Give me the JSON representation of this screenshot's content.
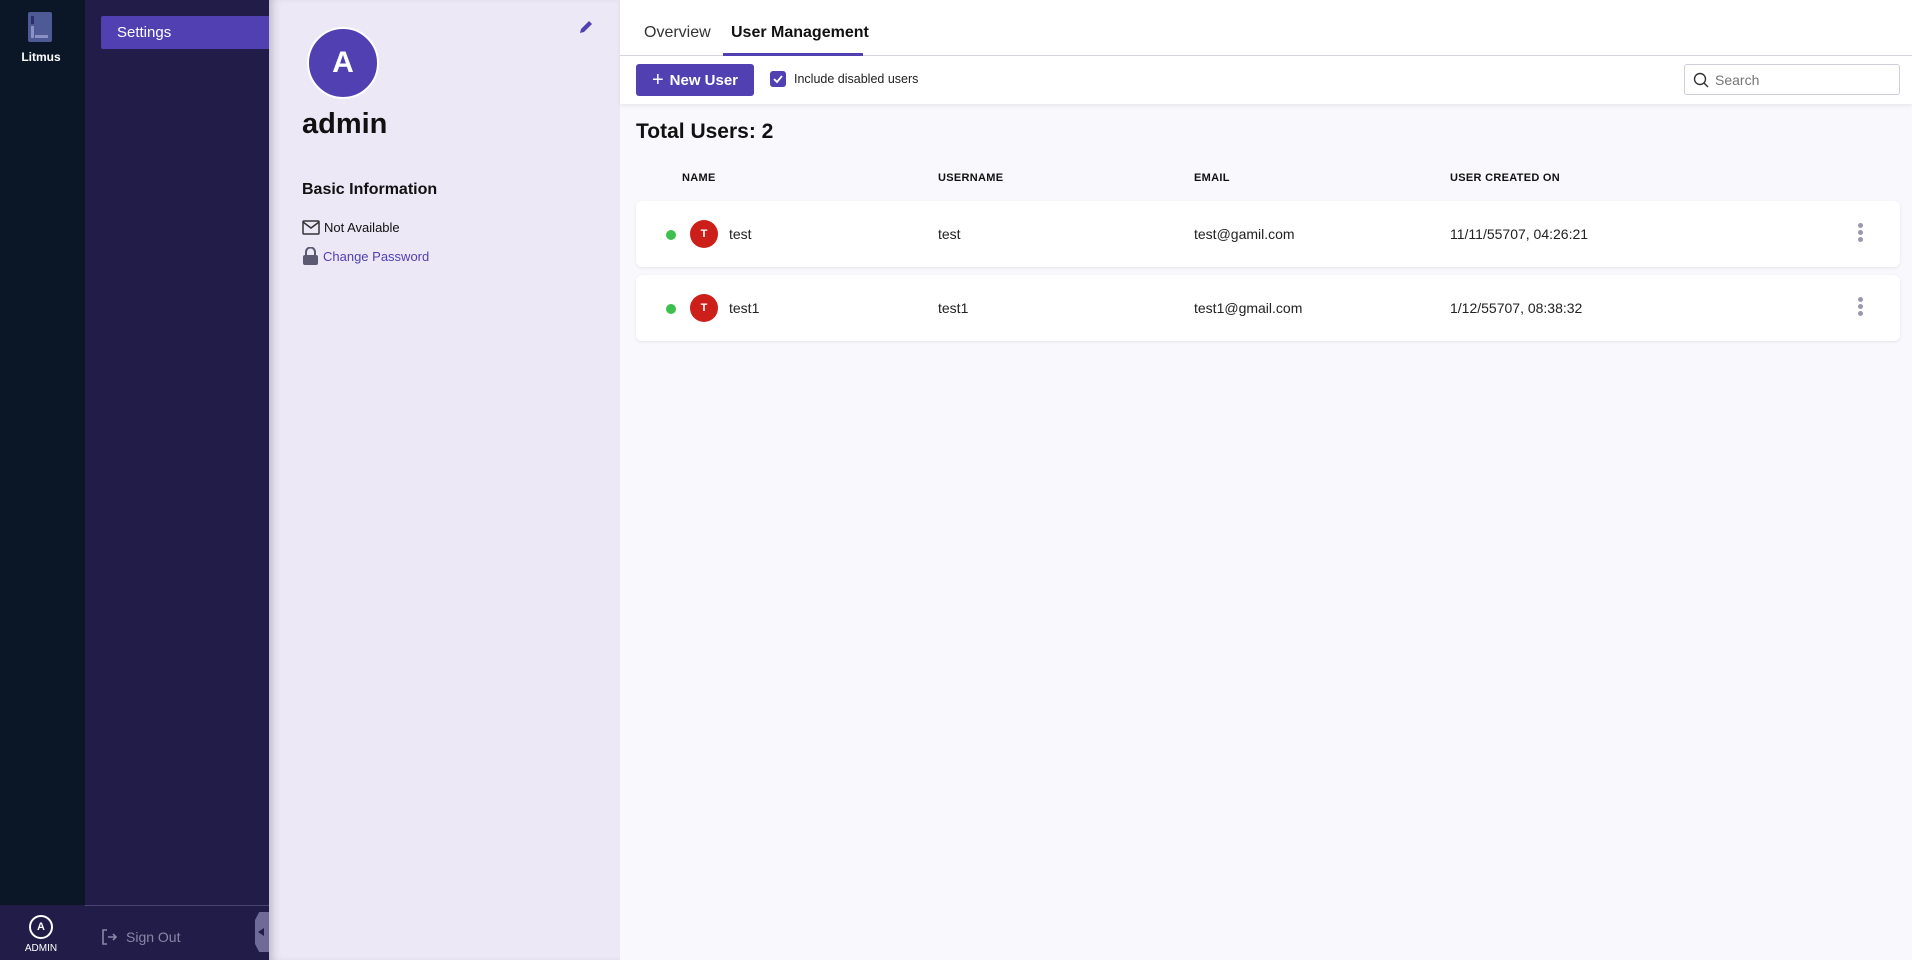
{
  "app": {
    "name": "Litmus",
    "user_badge": "ADMIN",
    "user_initial": "A"
  },
  "nav": {
    "items": [
      {
        "label": "Settings",
        "active": true
      }
    ],
    "sign_out": "Sign Out"
  },
  "profile": {
    "initial": "A",
    "username": "admin",
    "section_title": "Basic Information",
    "email": "Not Available",
    "change_password": "Change Password"
  },
  "tabs": [
    {
      "label": "Overview",
      "active": false
    },
    {
      "label": "User Management",
      "active": true
    }
  ],
  "toolbar": {
    "new_user": "New User",
    "include_disabled_label": "Include disabled users",
    "include_disabled_checked": true,
    "search_placeholder": "Search"
  },
  "summary": {
    "total_users": "Total Users: 2"
  },
  "table": {
    "columns": [
      "NAME",
      "USERNAME",
      "EMAIL",
      "USER CREATED ON"
    ],
    "rows": [
      {
        "initial": "T",
        "name": "test",
        "username": "test",
        "email": "test@gamil.com",
        "created": "11/11/55707, 04:26:21",
        "status": "active"
      },
      {
        "initial": "T",
        "name": "test1",
        "username": "test1",
        "email": "test1@gmail.com",
        "created": "1/12/55707, 08:38:32",
        "status": "active"
      }
    ]
  },
  "colors": {
    "accent": "#5040b2",
    "rail": "#0b1727",
    "nav": "#221c48",
    "status_active": "#3dbf4e",
    "user_avatar": "#cc1f1a"
  }
}
